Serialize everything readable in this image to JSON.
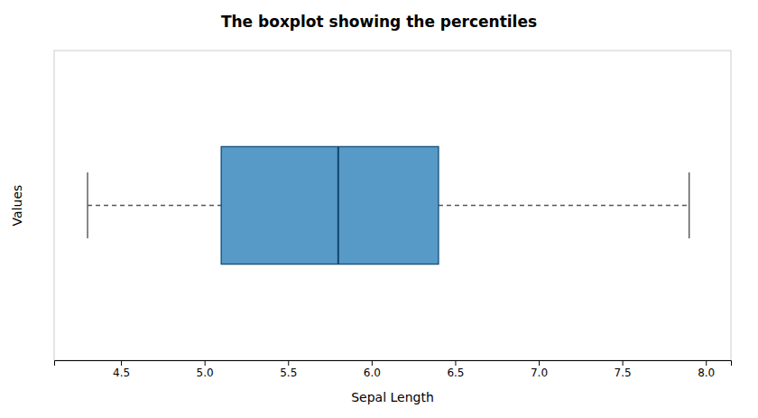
{
  "chart_data": {
    "type": "box",
    "orientation": "horizontal",
    "title": "The boxplot showing the percentiles",
    "xlabel": "Sepal Length",
    "ylabel": "Values",
    "whisker_low": 4.3,
    "q1": 5.1,
    "median": 5.8,
    "q3": 6.4,
    "whisker_high": 7.9,
    "xlim": [
      4.1,
      8.15
    ],
    "xticks": [
      4.5,
      {
        "value": 5.0,
        "label": "5.0"
      },
      5.5,
      {
        "value": 6.0,
        "label": "6.0"
      },
      6.5,
      {
        "value": 7.0,
        "label": "7.0"
      },
      7.5,
      {
        "value": 8.0,
        "label": "8.0"
      }
    ],
    "grid": false,
    "tick_labels": "x"
  }
}
